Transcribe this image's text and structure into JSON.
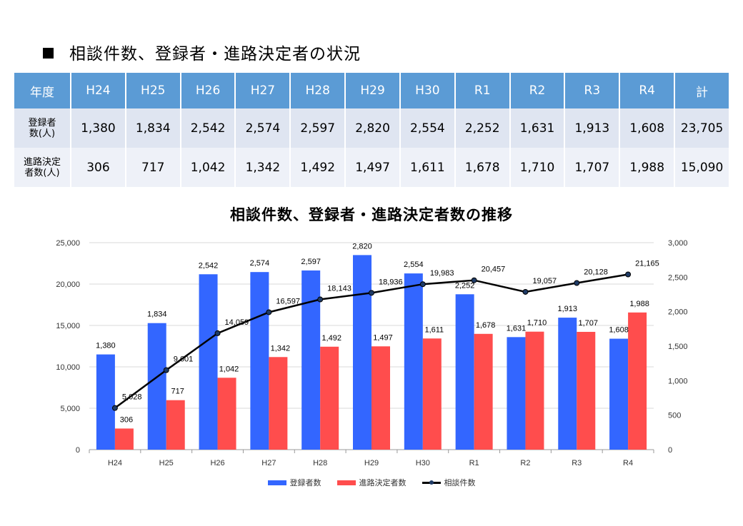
{
  "heading": "相談件数、登録者・進路決定者の状況",
  "table": {
    "header": [
      "年度",
      "H24",
      "H25",
      "H26",
      "H27",
      "H28",
      "H29",
      "H30",
      "R1",
      "R2",
      "R3",
      "R4",
      "計"
    ],
    "rows": [
      {
        "label_line1": "登録者",
        "label_line2": "数(人)",
        "cells": [
          "1,380",
          "1,834",
          "2,542",
          "2,574",
          "2,597",
          "2,820",
          "2,554",
          "2,252",
          "1,631",
          "1,913",
          "1,608",
          "23,705"
        ]
      },
      {
        "label_line1": "進路決定",
        "label_line2": "者数(人)",
        "cells": [
          "306",
          "717",
          "1,042",
          "1,342",
          "1,492",
          "1,497",
          "1,611",
          "1,678",
          "1,710",
          "1,707",
          "1,988",
          "15,090"
        ]
      }
    ]
  },
  "chart_data": {
    "type": "bar",
    "title": "相談件数、登録者・進路決定者数の推移",
    "categories": [
      "H24",
      "H25",
      "H26",
      "H27",
      "H28",
      "H29",
      "H30",
      "R1",
      "R2",
      "R3",
      "R4"
    ],
    "series": [
      {
        "name": "登録者数",
        "kind": "bar",
        "axis": "right",
        "color": "#3366ff",
        "values": [
          1380,
          1834,
          2542,
          2574,
          2597,
          2820,
          2554,
          2252,
          1631,
          1913,
          1608
        ]
      },
      {
        "name": "進路決定者数",
        "kind": "bar",
        "axis": "right",
        "color": "#ff4d4d",
        "values": [
          306,
          717,
          1042,
          1342,
          1492,
          1497,
          1611,
          1678,
          1710,
          1707,
          1988
        ]
      },
      {
        "name": "相談件数",
        "kind": "line",
        "axis": "left",
        "color": "#000000",
        "values": [
          5028,
          9601,
          14059,
          16597,
          18143,
          18936,
          19983,
          20457,
          19057,
          20128,
          21165
        ]
      }
    ],
    "y_left": {
      "min": 0,
      "max": 25000,
      "ticks": [
        "0",
        "5,000",
        "10,000",
        "15,000",
        "20,000",
        "25,000"
      ]
    },
    "y_right": {
      "min": 0,
      "max": 3000,
      "ticks": [
        "0",
        "500",
        "1,000",
        "1,500",
        "2,000",
        "2,500",
        "3,000"
      ]
    },
    "grid": true,
    "legend_position": "bottom"
  }
}
